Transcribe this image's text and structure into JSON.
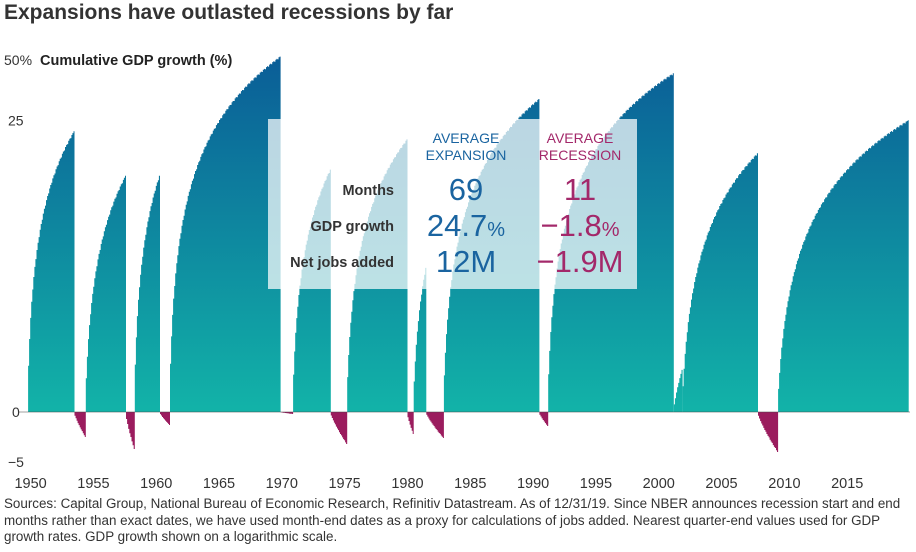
{
  "title": "Expansions have outlasted recessions by far",
  "colors": {
    "expansion_top": "#0a5896",
    "expansion_bottom": "#12b3a8",
    "recession": "#9b1c5e",
    "expansion_text": "#1a64a0",
    "recession_text": "#a3286a",
    "box_background": "#ffffff",
    "baseline": "#444444"
  },
  "chart_data": {
    "type": "area",
    "title": "Expansions have outlasted recessions by far",
    "ylabel": "Cumulative GDP growth (%)",
    "ylabel_top_tick": "50%",
    "y_scale": "log",
    "yticks": [
      {
        "value": 50,
        "label": "50%"
      },
      {
        "value": 25,
        "label": "25"
      },
      {
        "value": 0,
        "label": "0"
      },
      {
        "value": -5,
        "label": "-5"
      }
    ],
    "ylim": [
      -5,
      50
    ],
    "xlim": [
      1949,
      2020
    ],
    "xticks": [
      1950,
      1955,
      1960,
      1965,
      1970,
      1975,
      1980,
      1985,
      1990,
      1995,
      2000,
      2005,
      2010,
      2015
    ],
    "series": [
      {
        "start": 1949.8,
        "end": 1953.5,
        "peak": 22
      },
      {
        "start": 1953.5,
        "end": 1954.4,
        "peak": -2.5
      },
      {
        "start": 1954.4,
        "end": 1957.6,
        "peak": 13
      },
      {
        "start": 1957.6,
        "end": 1958.3,
        "peak": -3.7
      },
      {
        "start": 1958.3,
        "end": 1960.3,
        "peak": 13
      },
      {
        "start": 1960.3,
        "end": 1961.1,
        "peak": -1.3
      },
      {
        "start": 1961.1,
        "end": 1969.9,
        "peak": 52
      },
      {
        "start": 1969.9,
        "end": 1970.9,
        "peak": -0.2
      },
      {
        "start": 1970.9,
        "end": 1973.9,
        "peak": 14
      },
      {
        "start": 1973.9,
        "end": 1975.2,
        "peak": -3.2
      },
      {
        "start": 1975.2,
        "end": 1980.0,
        "peak": 20
      },
      {
        "start": 1980.0,
        "end": 1980.5,
        "peak": -2.2
      },
      {
        "start": 1980.5,
        "end": 1981.5,
        "peak": 4
      },
      {
        "start": 1981.5,
        "end": 1982.9,
        "peak": -2.6
      },
      {
        "start": 1982.9,
        "end": 1990.5,
        "peak": 32
      },
      {
        "start": 1990.5,
        "end": 1991.2,
        "peak": -1.4
      },
      {
        "start": 1991.2,
        "end": 2001.2,
        "peak": 43
      },
      {
        "start": 2001.2,
        "end": 2001.9,
        "peak": 0.6
      },
      {
        "start": 2001.9,
        "end": 2007.9,
        "peak": 17
      },
      {
        "start": 2007.9,
        "end": 2009.5,
        "peak": -4
      },
      {
        "start": 2009.5,
        "end": 2019.9,
        "peak": 25
      }
    ],
    "annotation_box": {
      "expansion_header": [
        "AVERAGE",
        "EXPANSION"
      ],
      "recession_header": [
        "AVERAGE",
        "RECESSION"
      ],
      "rows": [
        {
          "label": "Months",
          "expansion": "69",
          "recession": "11"
        },
        {
          "label": "GDP growth",
          "expansion": "24.7",
          "expansion_suffix": "%",
          "recession": "−1.8",
          "recession_suffix": "%"
        },
        {
          "label": "Net jobs added",
          "expansion": "12M",
          "recession": "−1.9M"
        }
      ]
    }
  },
  "footnote": "Sources: Capital Group, National Bureau of Economic Research, Refinitiv Datastream. As of 12/31/19. Since NBER announces recession start and end months rather than exact dates, we have used month-end dates as a proxy for calculations of jobs added. Nearest quarter-end values used for GDP growth rates. GDP growth shown on a logarithmic scale."
}
